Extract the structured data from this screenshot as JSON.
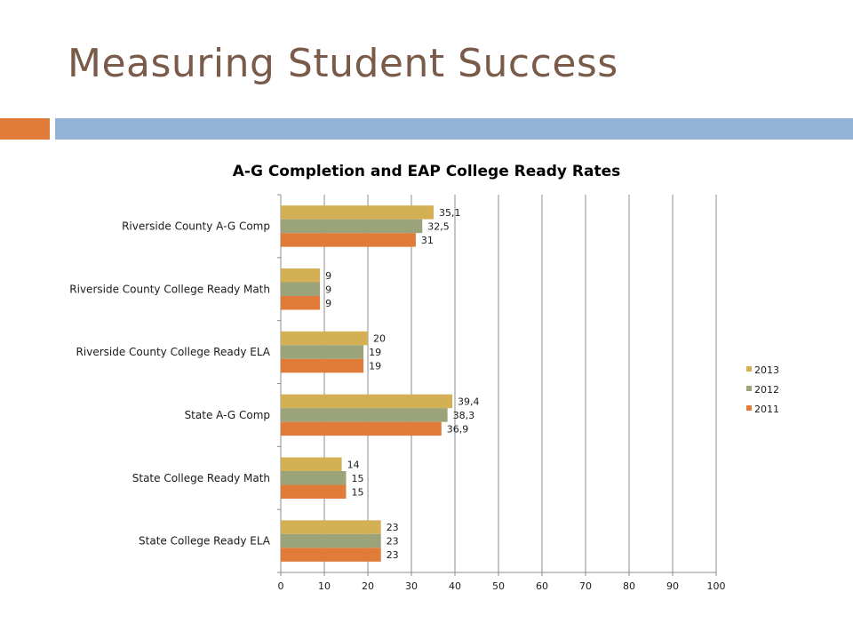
{
  "slide": {
    "title": "Measuring Student Success",
    "accent_left": "#e07b39",
    "accent_right": "#95b3d7",
    "title_color": "#7a5b4a"
  },
  "chart_data": {
    "type": "bar",
    "orientation": "horizontal",
    "title": "A-G Completion and EAP College Ready Rates",
    "categories": [
      "Riverside County A-G Comp",
      "Riverside County College Ready Math",
      "Riverside County College Ready ELA",
      "State A-G Comp",
      "State College Ready Math",
      "State College Ready ELA"
    ],
    "series": [
      {
        "name": "2013",
        "color": "#d4b055",
        "values": [
          35.1,
          9,
          20,
          39.4,
          14,
          23
        ],
        "labels": [
          "35,1",
          "9",
          "20",
          "39,4",
          "14",
          "23"
        ]
      },
      {
        "name": "2012",
        "color": "#9aa37a",
        "values": [
          32.5,
          9,
          19,
          38.3,
          15,
          23
        ],
        "labels": [
          "32,5",
          "9",
          "19",
          "38,3",
          "15",
          "23"
        ]
      },
      {
        "name": "2011",
        "color": "#e07b39",
        "values": [
          31,
          9,
          19,
          36.9,
          15,
          23
        ],
        "labels": [
          "31",
          "9",
          "19",
          "36,9",
          "15",
          "23"
        ]
      }
    ],
    "xlim": [
      0,
      100
    ],
    "xticks": [
      "0",
      "10",
      "20",
      "30",
      "40",
      "50",
      "60",
      "70",
      "80",
      "90",
      "100"
    ],
    "grid": true,
    "legend_position": "right",
    "legend_order": [
      "2013",
      "2012",
      "2011"
    ]
  }
}
